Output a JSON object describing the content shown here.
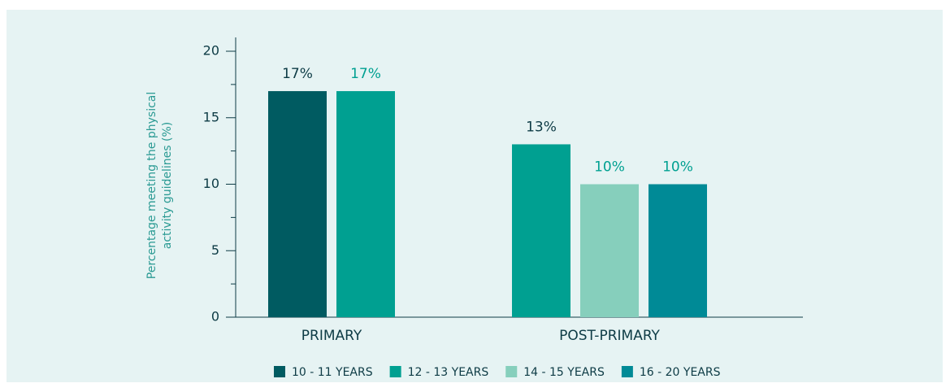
{
  "chart_data": {
    "type": "bar",
    "y_label": [
      "Percentage meeting the physical",
      "activity guidelines  (%)"
    ],
    "categories": [
      "PRIMARY",
      "POST-PRIMARY"
    ],
    "series": [
      {
        "name": "10 - 11 YEARS",
        "color": "#005b61",
        "values": [
          17,
          null
        ],
        "value_labels": [
          "17%",
          null
        ]
      },
      {
        "name": "12 - 13 YEARS",
        "color": "#00a091",
        "values": [
          17,
          13
        ],
        "value_labels": [
          "17%",
          "13%"
        ]
      },
      {
        "name": "14 - 15 YEARS",
        "color": "#86cfbc",
        "values": [
          null,
          10
        ],
        "value_labels": [
          null,
          "10%"
        ]
      },
      {
        "name": "16 - 20 YEARS",
        "color": "#008a96",
        "values": [
          null,
          10
        ],
        "value_labels": [
          null,
          "10%"
        ]
      }
    ],
    "ylim": [
      0,
      20
    ],
    "yticks": [
      0,
      5,
      10,
      15,
      20
    ],
    "minor_yticks": [
      2.5,
      7.5,
      12.5,
      17.5
    ]
  }
}
